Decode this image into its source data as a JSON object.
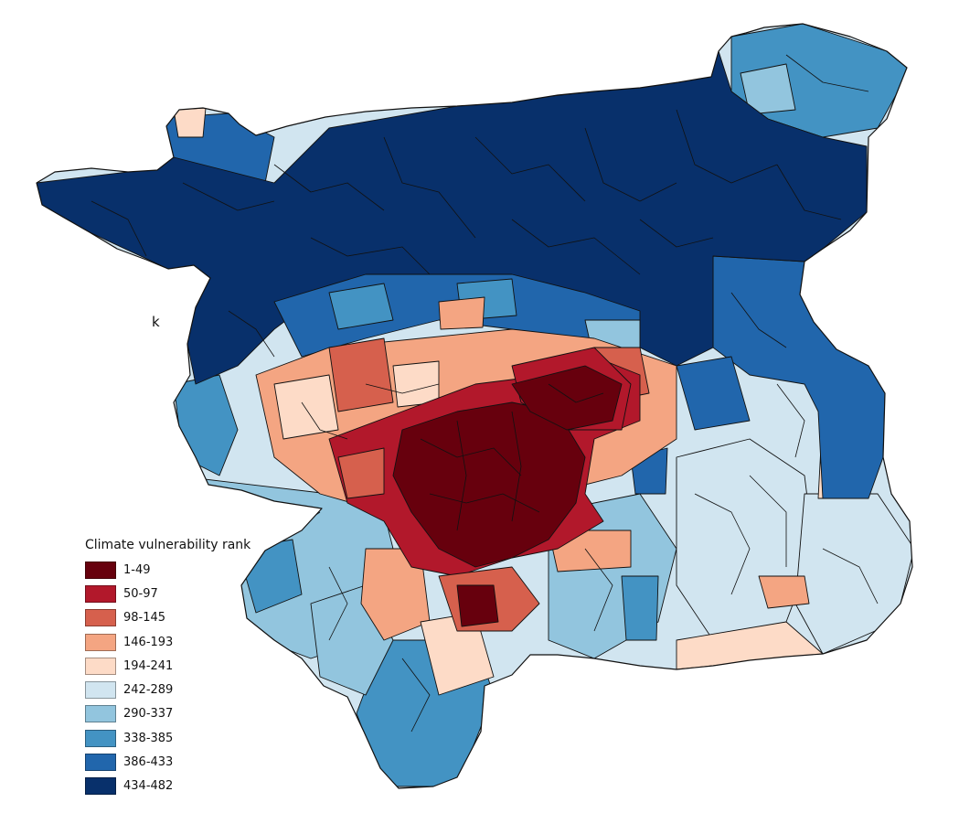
{
  "map": {
    "stray_label": "k",
    "fill_background": "#cfe2f2",
    "boundary_color": "#111111"
  },
  "legend": {
    "title": "Climate vulnerability rank",
    "classes": [
      {
        "label": "1-49",
        "color": "#67000d"
      },
      {
        "label": "50-97",
        "color": "#b2182b"
      },
      {
        "label": "98-145",
        "color": "#d6604d"
      },
      {
        "label": "146-193",
        "color": "#f4a582"
      },
      {
        "label": "194-241",
        "color": "#fddbc7"
      },
      {
        "label": "242-289",
        "color": "#d1e5f0"
      },
      {
        "label": "290-337",
        "color": "#92c5de"
      },
      {
        "label": "338-385",
        "color": "#4393c3"
      },
      {
        "label": "386-433",
        "color": "#2166ac"
      },
      {
        "label": "434-482",
        "color": "#08306b"
      }
    ]
  }
}
